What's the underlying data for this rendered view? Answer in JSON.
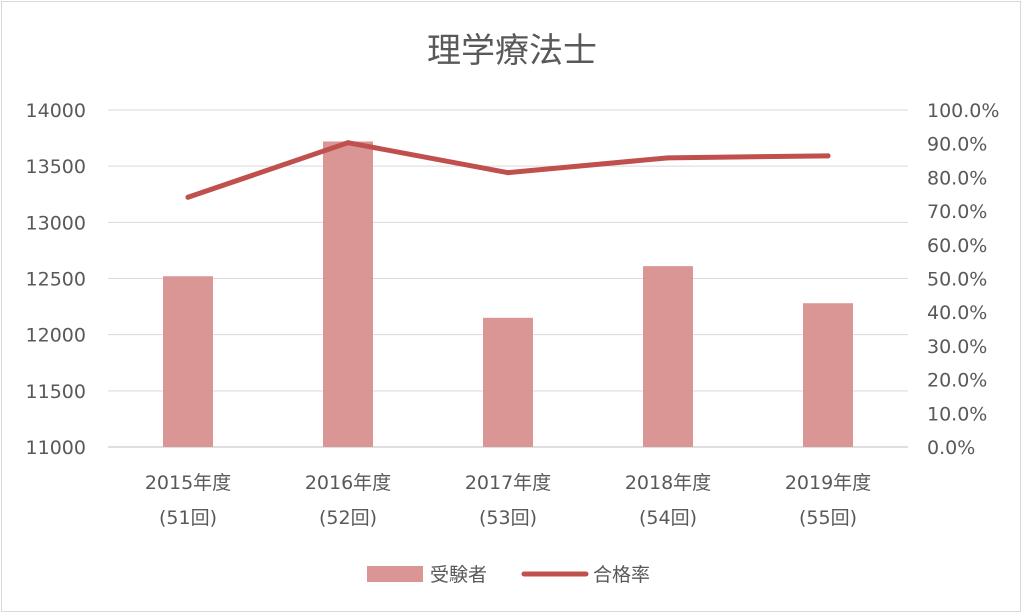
{
  "chart_data": {
    "type": "bar",
    "title": "理学療法士",
    "categories": [
      [
        "2015年度",
        "(51回)"
      ],
      [
        "2016年度",
        "(52回)"
      ],
      [
        "2017年度",
        "(53回)"
      ],
      [
        "2018年度",
        "(54回)"
      ],
      [
        "2019年度",
        "(55回)"
      ]
    ],
    "series": [
      {
        "name": "受験者",
        "kind": "bar",
        "axis": "left",
        "color": "#d99694",
        "values": [
          12520,
          13720,
          12150,
          12610,
          12280
        ]
      },
      {
        "name": "合格率",
        "kind": "line",
        "axis": "right",
        "color": "#c0504d",
        "values": [
          74.1,
          90.3,
          81.4,
          85.8,
          86.4
        ]
      }
    ],
    "y_left": {
      "min": 11000,
      "max": 14000,
      "ticks": [
        "14000",
        "13500",
        "13000",
        "12500",
        "12000",
        "11500",
        "11000"
      ]
    },
    "y_right": {
      "min": 0,
      "max": 100,
      "ticks": [
        "100.0%",
        "90.0%",
        "80.0%",
        "70.0%",
        "60.0%",
        "50.0%",
        "40.0%",
        "30.0%",
        "20.0%",
        "10.0%",
        "0.0%"
      ]
    },
    "grid": true,
    "legend": "bottom"
  }
}
